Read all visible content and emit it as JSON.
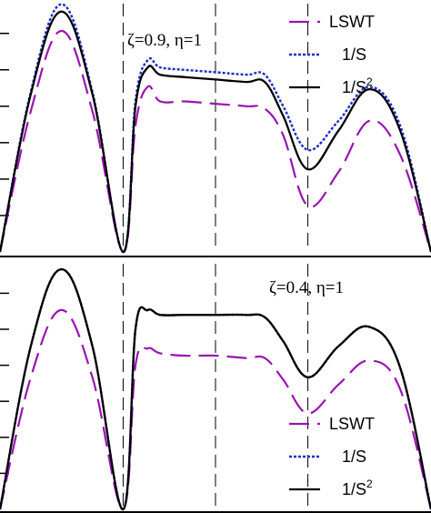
{
  "chart_data": [
    {
      "type": "line",
      "annotation": "ζ=0.9, η=1",
      "x_range": [
        0,
        3.5
      ],
      "y_range": [
        0,
        1.0
      ],
      "vlines": [
        1.0,
        1.75,
        2.5
      ],
      "legend_position": "top-right",
      "series": [
        {
          "name": "LSWT",
          "x": [
            0,
            0.25,
            0.5,
            0.75,
            1.0,
            1.1,
            1.2,
            1.3,
            1.5,
            1.75,
            2.0,
            2.15,
            2.3,
            2.5,
            2.75,
            3.0,
            3.25,
            3.5
          ],
          "y": [
            0,
            0.58,
            0.91,
            0.58,
            0,
            0.52,
            0.68,
            0.62,
            0.62,
            0.61,
            0.6,
            0.59,
            0.48,
            0.19,
            0.33,
            0.54,
            0.4,
            0
          ]
        },
        {
          "name": "1/S",
          "x": [
            0,
            0.25,
            0.5,
            0.75,
            1.0,
            1.1,
            1.2,
            1.3,
            1.5,
            1.75,
            2.0,
            2.15,
            2.3,
            2.5,
            2.75,
            3.0,
            3.25,
            3.5
          ],
          "y": [
            0,
            0.66,
            1.02,
            0.66,
            0,
            0.62,
            0.79,
            0.76,
            0.75,
            0.74,
            0.73,
            0.73,
            0.6,
            0.42,
            0.54,
            0.68,
            0.52,
            0
          ]
        },
        {
          "name": "1/S²",
          "x": [
            0,
            0.25,
            0.5,
            0.75,
            1.0,
            1.1,
            1.2,
            1.3,
            1.5,
            1.75,
            2.0,
            2.15,
            2.3,
            2.5,
            2.75,
            3.0,
            3.25,
            3.5
          ],
          "y": [
            0,
            0.65,
            0.99,
            0.65,
            0,
            0.6,
            0.76,
            0.73,
            0.72,
            0.71,
            0.7,
            0.7,
            0.56,
            0.34,
            0.5,
            0.67,
            0.5,
            0
          ]
        }
      ]
    },
    {
      "type": "line",
      "annotation": "ζ=0.4, η=1",
      "x_range": [
        0,
        3.5
      ],
      "y_range": [
        0,
        1.0
      ],
      "vlines": [
        1.0,
        1.75,
        2.5
      ],
      "legend_position": "bottom-right",
      "series": [
        {
          "name": "LSWT",
          "x": [
            0,
            0.25,
            0.5,
            0.75,
            1.0,
            1.1,
            1.2,
            1.3,
            1.5,
            1.75,
            2.0,
            2.15,
            2.3,
            2.5,
            2.75,
            3.0,
            3.25,
            3.5
          ],
          "y": [
            0,
            0.55,
            0.83,
            0.55,
            0,
            0.6,
            0.67,
            0.65,
            0.64,
            0.64,
            0.63,
            0.63,
            0.54,
            0.4,
            0.52,
            0.62,
            0.5,
            0
          ]
        },
        {
          "name": "1/S",
          "x": [
            0,
            0.25,
            0.5,
            0.75,
            1.0,
            1.1,
            1.2,
            1.3,
            1.5,
            1.75,
            2.0,
            2.15,
            2.3,
            2.5,
            2.75,
            3.0,
            3.25,
            3.5
          ],
          "y": [
            0,
            0.68,
            1.0,
            0.68,
            0,
            0.75,
            0.83,
            0.81,
            0.81,
            0.81,
            0.81,
            0.8,
            0.7,
            0.55,
            0.68,
            0.76,
            0.59,
            0
          ]
        },
        {
          "name": "1/S²",
          "x": [
            0,
            0.25,
            0.5,
            0.75,
            1.0,
            1.1,
            1.2,
            1.3,
            1.5,
            1.75,
            2.0,
            2.15,
            2.3,
            2.5,
            2.75,
            3.0,
            3.25,
            3.5
          ],
          "y": [
            0,
            0.68,
            1.0,
            0.68,
            0,
            0.75,
            0.83,
            0.81,
            0.81,
            0.81,
            0.81,
            0.8,
            0.7,
            0.55,
            0.68,
            0.76,
            0.59,
            0
          ]
        }
      ]
    }
  ],
  "styles": {
    "LSWT": {
      "color": "#9a12b3",
      "dash": "22 9",
      "width": 2.2
    },
    "1/S": {
      "color": "#1c2fc4",
      "dash": "3 2",
      "width": 2.4
    },
    "1/S²": {
      "color": "#000000",
      "dash": "",
      "width": 2.3
    }
  },
  "legend_labels": {
    "lswt": "LSWT",
    "inv_s": "1/S",
    "inv_s2_base": "1/S",
    "inv_s2_exp": "2"
  }
}
